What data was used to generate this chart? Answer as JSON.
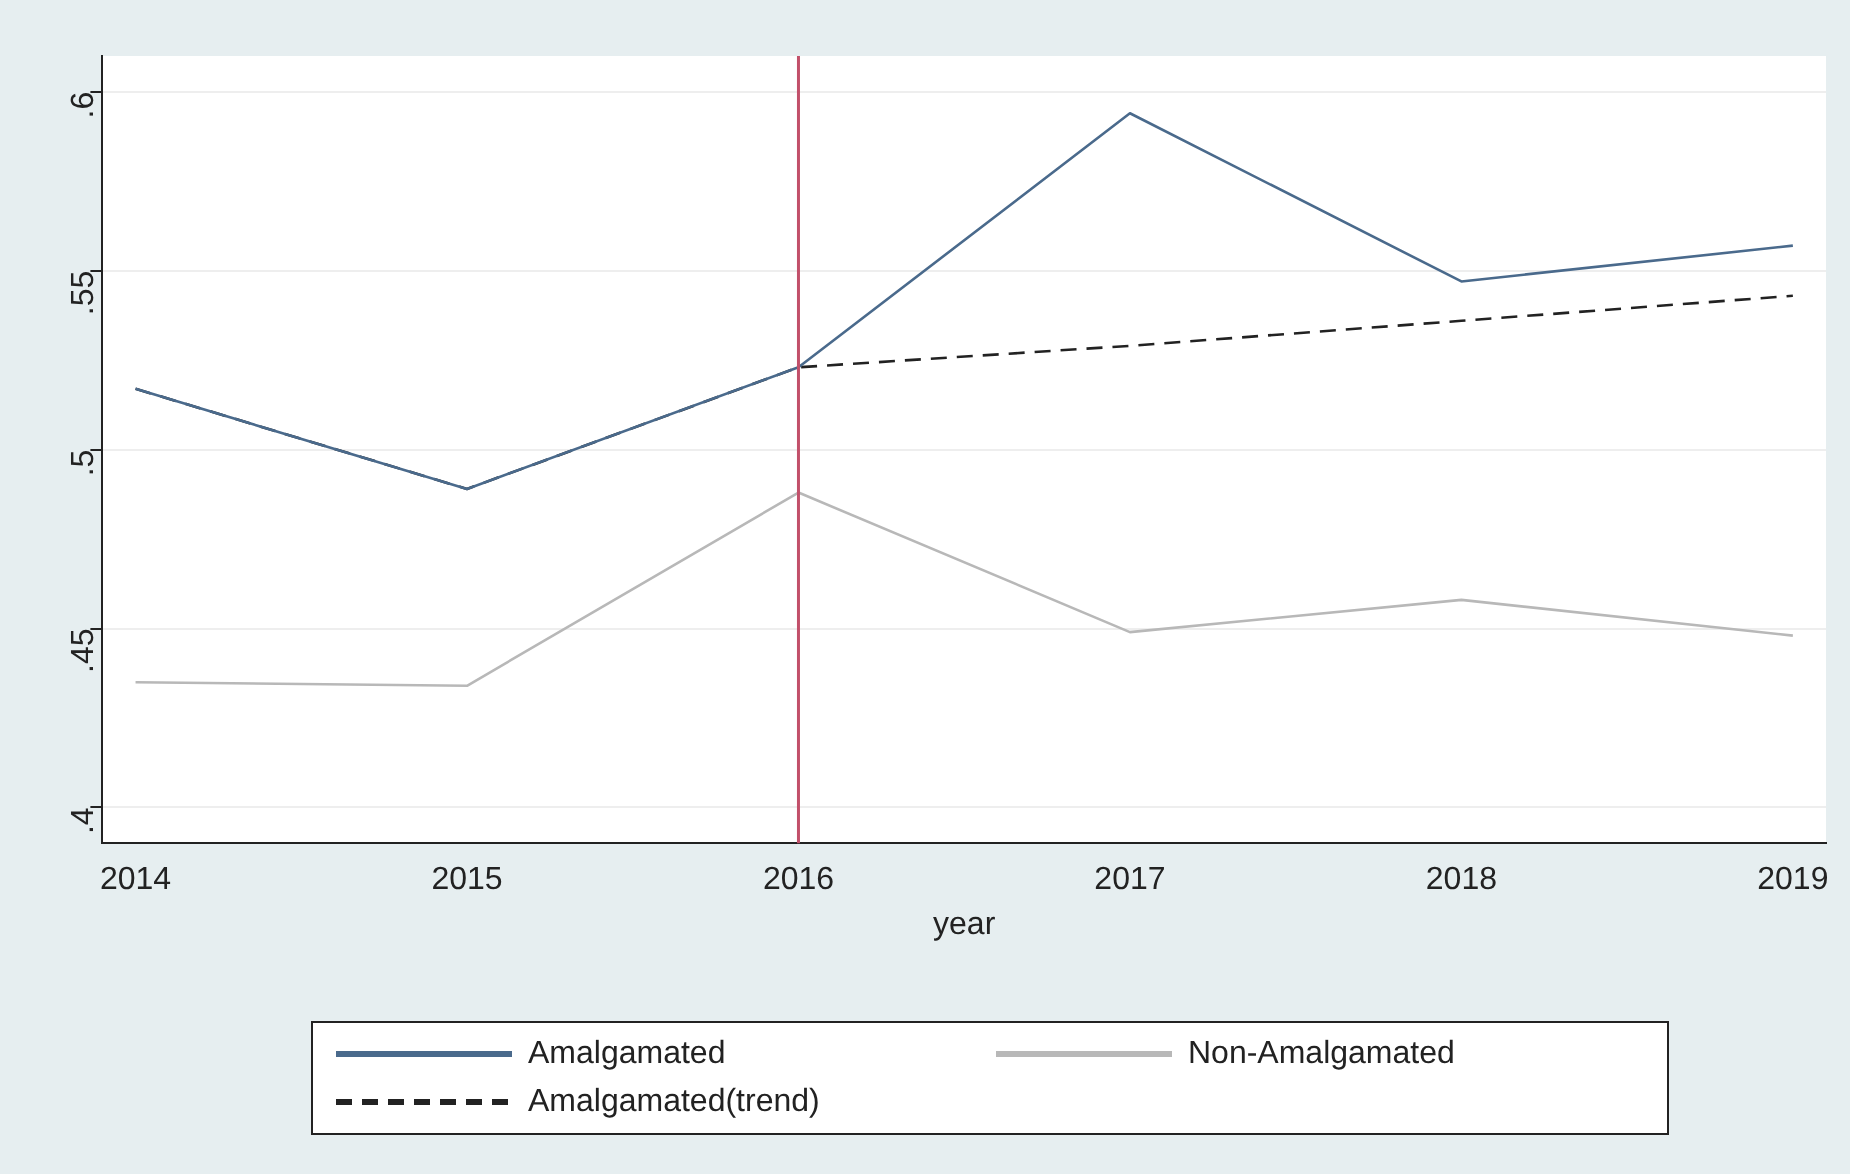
{
  "chart_data": {
    "type": "line",
    "xlabel": "year",
    "x": [
      2014,
      2015,
      2016,
      2017,
      2018,
      2019
    ],
    "series": [
      {
        "name": "Amalgamated",
        "color": "#4a6a8c",
        "values": [
          0.517,
          0.489,
          0.523,
          0.594,
          0.547,
          0.557
        ]
      },
      {
        "name": "Non-Amalgamated",
        "color": "#b8b8b8",
        "values": [
          0.435,
          0.434,
          0.488,
          0.449,
          0.458,
          0.448
        ]
      },
      {
        "name": "Amalgamated(trend)",
        "color": "#222222",
        "line_style": "dashed",
        "values": [
          0.517,
          0.489,
          0.523,
          0.529,
          0.536,
          0.543
        ]
      }
    ],
    "xlim": [
      2013.9,
      2019.1
    ],
    "xticks": [
      2014,
      2015,
      2016,
      2017,
      2018,
      2019
    ],
    "ylim": [
      0.39,
      0.61
    ],
    "yticks": [
      {
        "value": 0.4,
        "label": ".4"
      },
      {
        "value": 0.45,
        "label": ".45"
      },
      {
        "value": 0.5,
        "label": ".5"
      },
      {
        "value": 0.55,
        "label": ".55"
      },
      {
        "value": 0.6,
        "label": ".6"
      }
    ],
    "ref_lines": [
      {
        "axis": "x",
        "value": 2016,
        "color": "#c2506a"
      }
    ],
    "grid": "y",
    "legend": "bottom",
    "marker": "none"
  }
}
